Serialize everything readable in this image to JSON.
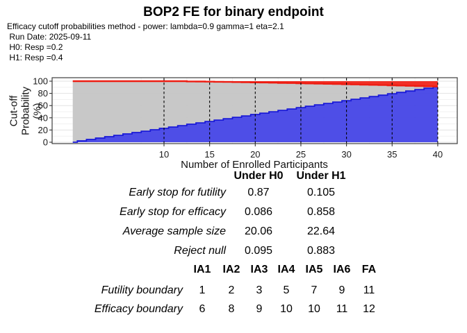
{
  "page": {
    "title": "BOP2 FE for binary endpoint",
    "subtitle_lines": [
      "Efficacy cutoff probabilities method - power: lambda=0.9 gamma=1 eta=2.1",
      " Run Date: 2025-09-11",
      " H0: Resp =0.2",
      " H1: Resp =0.4"
    ]
  },
  "chart_data": {
    "type": "area",
    "title": "",
    "xlabel": "Number of Enrolled Participants",
    "ylabel": "Cut-off Probability (%)",
    "xlim": [
      -2.2,
      42.2
    ],
    "ylim": [
      -2.5,
      105.5
    ],
    "x_ticks": [
      10,
      15,
      20,
      25,
      30,
      35,
      40
    ],
    "y_ticks": [
      0,
      20,
      40,
      60,
      80,
      100
    ],
    "x_minor_ticks": [
      7.5,
      12.5,
      17.5,
      22.5,
      27.5,
      32.5,
      37.5
    ],
    "y_minor_ticks": [
      10,
      30,
      50,
      70,
      90
    ],
    "interim_analysis_lines_x": [
      10,
      15,
      20,
      25,
      30,
      35,
      40
    ],
    "grid": true,
    "legend": "none",
    "x": [
      0,
      1,
      2,
      3,
      4,
      5,
      6,
      7,
      8,
      9,
      10,
      11,
      12,
      13,
      14,
      15,
      16,
      17,
      18,
      19,
      20,
      21,
      22,
      23,
      24,
      25,
      26,
      27,
      28,
      29,
      30,
      31,
      32,
      33,
      34,
      35,
      36,
      37,
      38,
      39,
      40
    ],
    "series": [
      {
        "name": "efficacy cutoff probability",
        "role": "upper boundary (area filled up to 100%)",
        "color": "#ee1c12",
        "fill": "#f0251a",
        "values": [
          100,
          100,
          100,
          100,
          100,
          100,
          100,
          100,
          100,
          100,
          100,
          100,
          100,
          99.6,
          99.4,
          99.2,
          99,
          98.7,
          98.5,
          98.3,
          98,
          97.8,
          97.5,
          97.2,
          96.9,
          96.6,
          96.3,
          96,
          95.7,
          95.4,
          95,
          94.7,
          94.3,
          94,
          93.6,
          93.2,
          92.8,
          92.4,
          92,
          91.6,
          91.2
        ]
      },
      {
        "name": "futility cutoff probability",
        "role": "lower boundary (area filled down to 0%)",
        "color": "#1a1ad8",
        "fill": "#4545e6",
        "values": [
          0,
          2.3,
          4.5,
          6.8,
          9.1,
          11.3,
          13.6,
          15.9,
          18.1,
          20.4,
          22.7,
          24.9,
          27.2,
          29.5,
          31.7,
          34,
          36.3,
          38.5,
          40.8,
          43.1,
          45.4,
          47.6,
          49.9,
          52.2,
          54.4,
          56.7,
          59,
          61.2,
          63.5,
          65.8,
          68,
          70.3,
          72.6,
          74.8,
          77.1,
          79.4,
          81.6,
          83.9,
          86.2,
          88.4,
          90.7
        ]
      }
    ],
    "middle_region_fill": "#c5c5c5"
  },
  "oc_table": {
    "col_headers": [
      "Under H0",
      "Under H1"
    ],
    "rows": [
      {
        "label": "Early stop for futility",
        "values": [
          "0.87",
          "0.105"
        ]
      },
      {
        "label": "Early stop for efficacy",
        "values": [
          "0.086",
          "0.858"
        ]
      },
      {
        "label": "Average sample size",
        "values": [
          "20.06",
          "22.64"
        ]
      },
      {
        "label": "Reject null",
        "values": [
          "0.095",
          "0.883"
        ]
      }
    ]
  },
  "boundary_table": {
    "col_headers": [
      "IA1",
      "IA2",
      "IA3",
      "IA4",
      "IA5",
      "IA6",
      "FA"
    ],
    "rows": [
      {
        "label": "Futility boundary",
        "values": [
          "1",
          "2",
          "3",
          "5",
          "7",
          "9",
          "11"
        ]
      },
      {
        "label": "Efficacy boundary",
        "values": [
          "6",
          "8",
          "9",
          "10",
          "10",
          "11",
          "12"
        ]
      }
    ]
  }
}
